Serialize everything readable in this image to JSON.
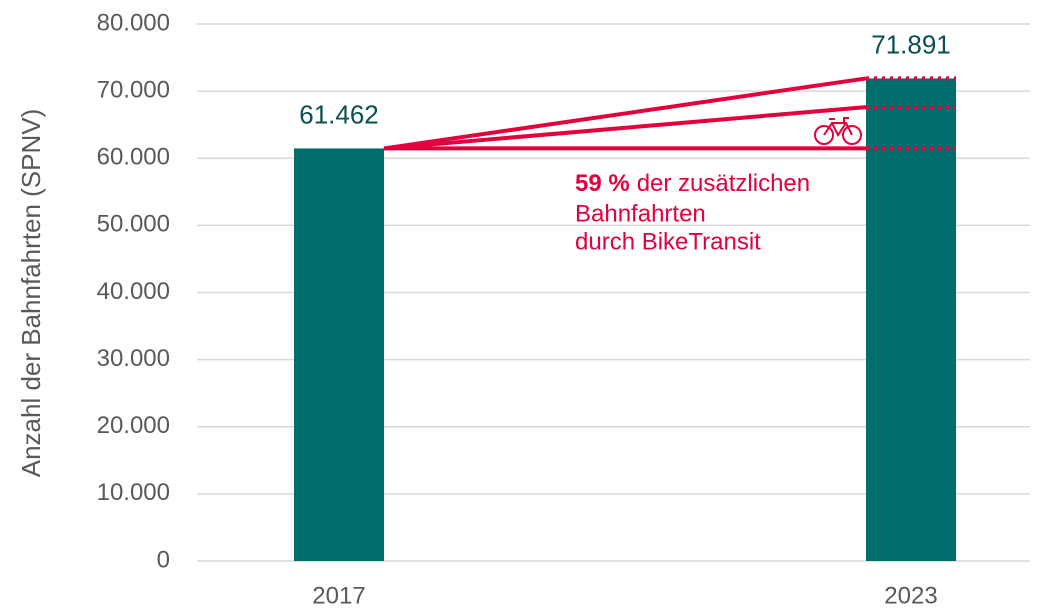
{
  "chart_data": {
    "type": "bar",
    "y_axis_label": "Anzahl der Bahnfahrten (SPNV)",
    "categories": [
      "2017",
      "2023"
    ],
    "values": [
      61462,
      71891
    ],
    "value_labels": [
      "61.462",
      "71.891"
    ],
    "color": "#006e6e",
    "ylim": [
      0,
      80000
    ],
    "yticks": [
      0,
      {
        "value": 10000,
        "label": "10.000"
      },
      {
        "value": 20000,
        "label": "20.000"
      },
      {
        "value": 30000,
        "label": "30.000"
      },
      {
        "value": 40000,
        "label": "40.000"
      },
      {
        "value": 50000,
        "label": "50.000"
      },
      {
        "value": 60000,
        "label": "60.000"
      },
      {
        "value": 70000,
        "label": "70.000"
      },
      {
        "value": 80000,
        "label": "80.000"
      }
    ],
    "grid": true,
    "reference_levels": [
      61462,
      67615,
      71891
    ],
    "reference_color": "#e2003d",
    "annotation": {
      "bold": "59 %",
      "lines": [
        "der zusätzlichen",
        "Bahnfahrten",
        "durch BikeTransit"
      ]
    }
  }
}
